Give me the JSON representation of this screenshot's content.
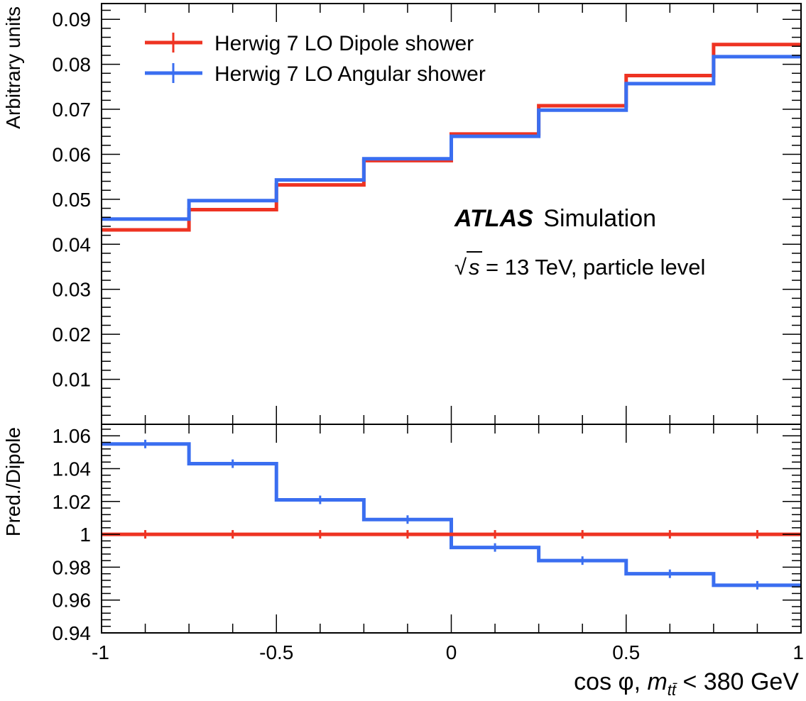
{
  "chart_data": [
    {
      "panel": "main",
      "type": "line",
      "step": true,
      "bin_edges": [
        -1,
        -0.75,
        -0.5,
        -0.25,
        0,
        0.25,
        0.5,
        0.75,
        1
      ],
      "ylabel": "Arbitrary units",
      "ylim": [
        0,
        0.0935
      ],
      "y_ticks": [
        0.01,
        0.02,
        0.03,
        0.04,
        0.05,
        0.06,
        0.07,
        0.08,
        0.09
      ],
      "y_tick_labels": [
        "0.01",
        "0.02",
        "0.03",
        "0.04",
        "0.05",
        "0.06",
        "0.07",
        "0.08",
        "0.09"
      ],
      "series": [
        {
          "name": "Herwig 7 LO Dipole shower",
          "color": "#ee3322",
          "values": [
            0.0432,
            0.0477,
            0.0532,
            0.0586,
            0.0645,
            0.0708,
            0.0775,
            0.0844
          ]
        },
        {
          "name": "Herwig 7 LO Angular shower",
          "color": "#3a6ef0",
          "values": [
            0.0456,
            0.0497,
            0.0543,
            0.059,
            0.064,
            0.0698,
            0.0757,
            0.0817
          ]
        }
      ],
      "legend_position": "top-left",
      "annotations": {
        "atlas": "ATLAS",
        "simulation": "Simulation",
        "sqrt": "√",
        "s_symbol": "s",
        "energy": "= 13 TeV, particle level"
      }
    },
    {
      "panel": "ratio",
      "type": "line",
      "step": true,
      "bin_edges": [
        -1,
        -0.75,
        -0.5,
        -0.25,
        0,
        0.25,
        0.5,
        0.75,
        1
      ],
      "ylabel": "Pred./Dipole",
      "ylim": [
        0.94,
        1.067
      ],
      "y_ticks": [
        0.94,
        0.96,
        0.98,
        1.0,
        1.02,
        1.04,
        1.06
      ],
      "y_tick_labels": [
        "0.94",
        "0.96",
        "0.98",
        "1",
        "1.02",
        "1.04",
        "1.06"
      ],
      "series": [
        {
          "name": "Herwig 7 LO Dipole shower",
          "color": "#ee3322",
          "values": [
            1.0,
            1.0,
            1.0,
            1.0,
            1.0,
            1.0,
            1.0,
            1.0
          ]
        },
        {
          "name": "Herwig 7 LO Angular shower",
          "color": "#3a6ef0",
          "values": [
            1.055,
            1.043,
            1.021,
            1.009,
            0.992,
            0.984,
            0.976,
            0.969
          ]
        }
      ],
      "xlim": [
        -1,
        1
      ],
      "x_ticks": [
        -1,
        -0.5,
        0,
        0.5,
        1
      ],
      "x_tick_labels": [
        "-1",
        "-0.5",
        "0",
        "0.5",
        "1"
      ],
      "xlabel": {
        "prefix": "cos φ, ",
        "var": "m",
        "sub": "tt̄",
        "suffix": " < 380 GeV"
      }
    }
  ]
}
